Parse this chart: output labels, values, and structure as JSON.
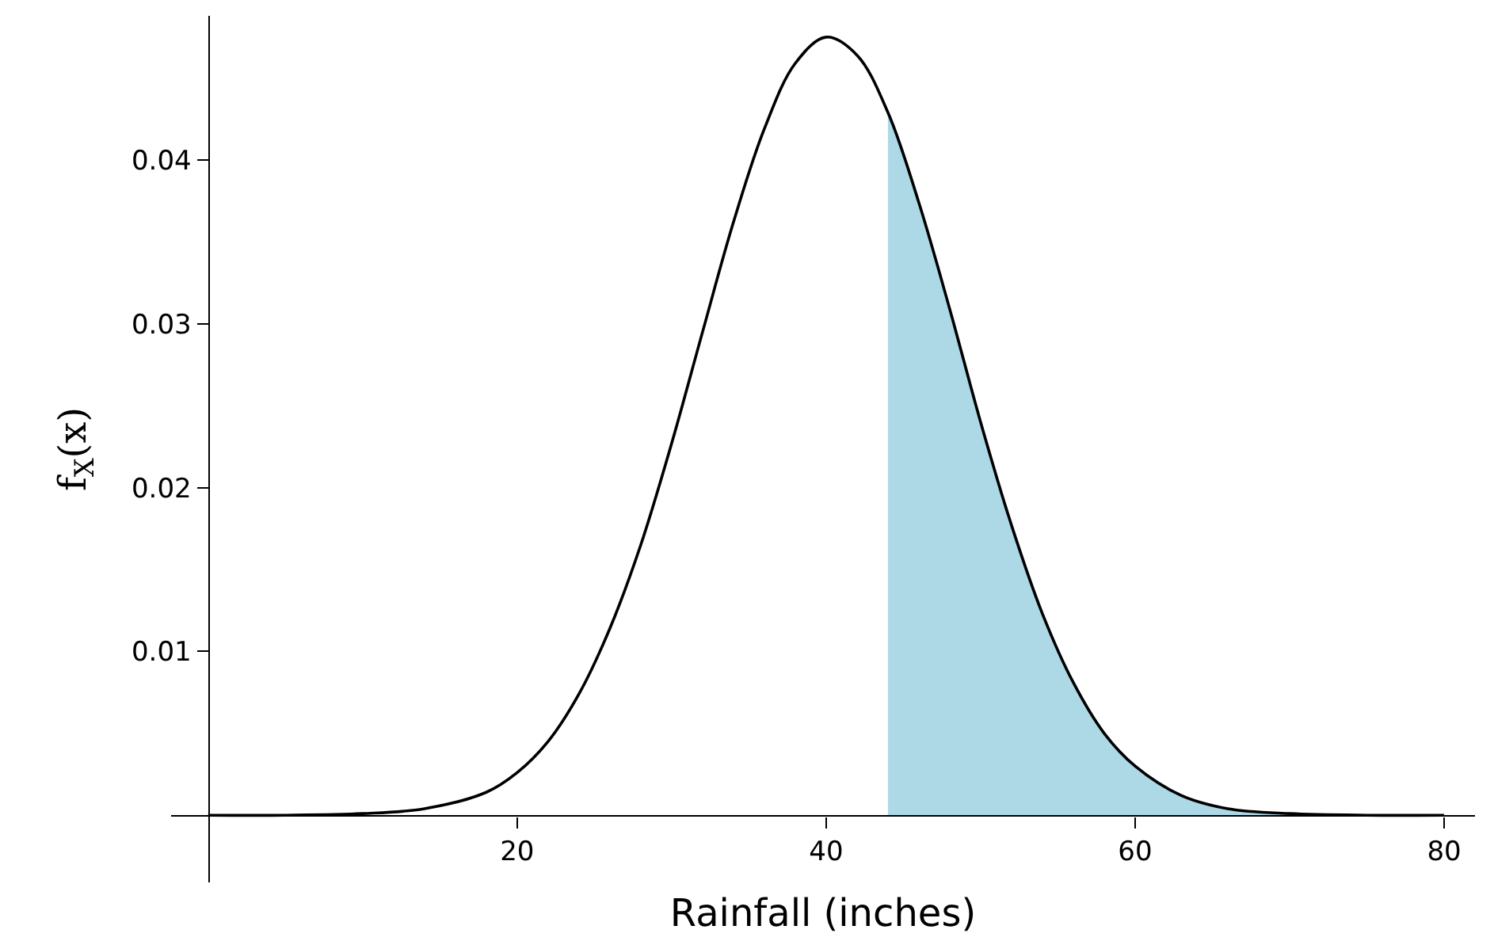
{
  "chart_data": {
    "type": "line",
    "xlabel": "Rainfall (inches)",
    "ylabel": "f$_{X}$(x)",
    "xlim": [
      -2.4,
      82
    ],
    "ylim": [
      -0.0041,
      0.0488
    ],
    "xticks": [
      20,
      40,
      60,
      80
    ],
    "yticks": [
      0.01,
      0.02,
      0.03,
      0.04
    ],
    "series": [
      {
        "type": "area",
        "color": "#add8e6",
        "x": [
          44,
          46,
          48,
          50,
          52,
          54,
          56,
          58,
          60,
          63,
          66,
          70,
          75,
          80
        ],
        "values": [
          0.0429,
          0.0374,
          0.0309,
          0.024,
          0.0177,
          0.0123,
          0.0081,
          0.005,
          0.003,
          0.0012,
          0.0004,
          0.0001,
          0,
          0
        ]
      },
      {
        "color": "#000000",
        "x": [
          0,
          5,
          10,
          14,
          18,
          20,
          22,
          24,
          26,
          28,
          30,
          32,
          34,
          36,
          38,
          40,
          42,
          44,
          46,
          48,
          50,
          52,
          54,
          56,
          58,
          60,
          63,
          66,
          70,
          75,
          80
        ],
        "values": [
          0,
          0,
          0.0001,
          0.0004,
          0.0014,
          0.0026,
          0.0045,
          0.0074,
          0.0114,
          0.0165,
          0.0227,
          0.0295,
          0.0362,
          0.0419,
          0.0459,
          0.0475,
          0.0464,
          0.0429,
          0.0374,
          0.0309,
          0.024,
          0.0177,
          0.0123,
          0.0081,
          0.005,
          0.003,
          0.0012,
          0.0004,
          0.0001,
          0,
          0
        ]
      }
    ]
  }
}
